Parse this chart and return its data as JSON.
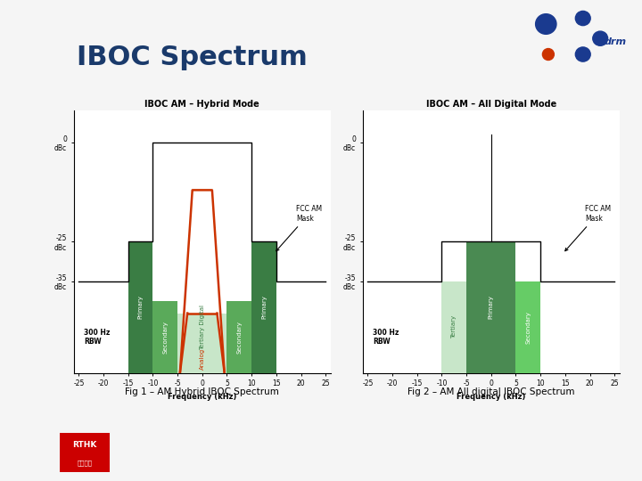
{
  "title": "IBOC Spectrum",
  "title_color": "#1a3a6b",
  "title_fontsize": 22,
  "bg_color": "#f5f5f5",
  "fig1_title": "IBOC AM – Hybrid Mode",
  "fig2_title": "IBOC AM – All Digital Mode",
  "fig1_caption": "Fig 1 – AM Hybrid IBOC Spectrum",
  "fig2_caption": "Fig 2 – AM All digital IBOC Spectrum",
  "freq_label": "Frequency (kHz)",
  "rbw_label": "300 Hz\nRBW",
  "xticks": [
    -25,
    -20,
    -15,
    -10,
    -5,
    0,
    5,
    10,
    15,
    20,
    25
  ],
  "ylim_bottom": -58,
  "ylim_top": 8,
  "red_bar": "#cc0000",
  "green_line": "#33bb33",
  "primary_green": "#3a7d44",
  "secondary_green": "#5aaa5a",
  "tertiary_green": "#c8e6c9",
  "analog_red": "#cc3300",
  "drm_blue": "#1a3a8f",
  "drm_red": "#cc3300",
  "mask_color": "#000000",
  "rthk_red": "#cc0000"
}
